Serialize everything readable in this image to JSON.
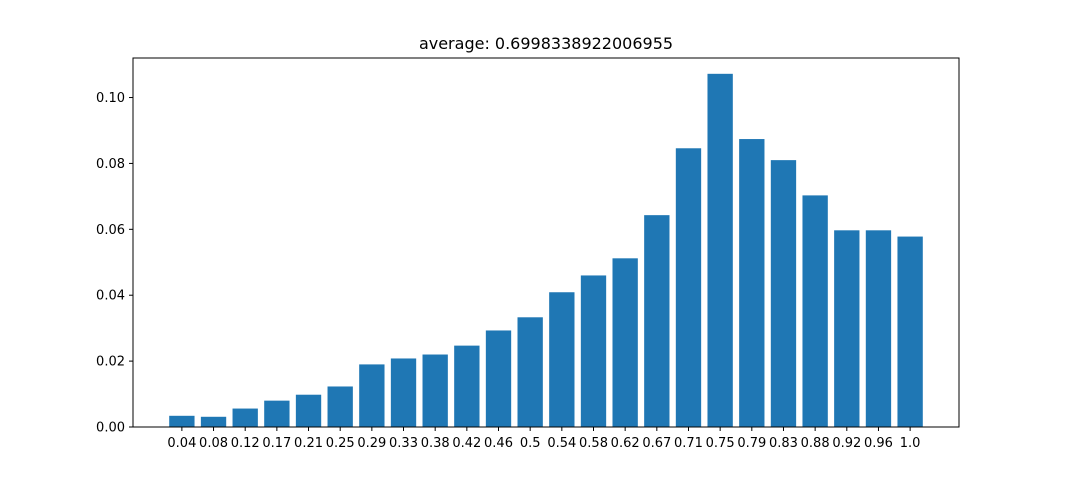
{
  "chart_data": {
    "type": "bar",
    "title": "average: 0.6998338922006955",
    "xlabel": "",
    "ylabel": "",
    "categories": [
      "0.04",
      "0.08",
      "0.12",
      "0.17",
      "0.21",
      "0.25",
      "0.29",
      "0.33",
      "0.38",
      "0.42",
      "0.46",
      "0.5",
      "0.54",
      "0.58",
      "0.62",
      "0.67",
      "0.71",
      "0.75",
      "0.79",
      "0.83",
      "0.88",
      "0.92",
      "0.96",
      "1.0"
    ],
    "values": [
      0.0034,
      0.0031,
      0.0056,
      0.008,
      0.0098,
      0.0123,
      0.019,
      0.0208,
      0.022,
      0.0247,
      0.0293,
      0.0333,
      0.0409,
      0.046,
      0.0512,
      0.0643,
      0.0846,
      0.1072,
      0.0874,
      0.081,
      0.0703,
      0.0597,
      0.0597,
      0.0578
    ],
    "ylim": [
      0,
      0.112
    ],
    "yticks": [
      0.0,
      0.02,
      0.04,
      0.06,
      0.08,
      0.1
    ],
    "ytick_labels": [
      "0.00",
      "0.02",
      "0.04",
      "0.06",
      "0.08",
      "0.10"
    ],
    "bar_color": "#1f77b4",
    "grid": false
  }
}
